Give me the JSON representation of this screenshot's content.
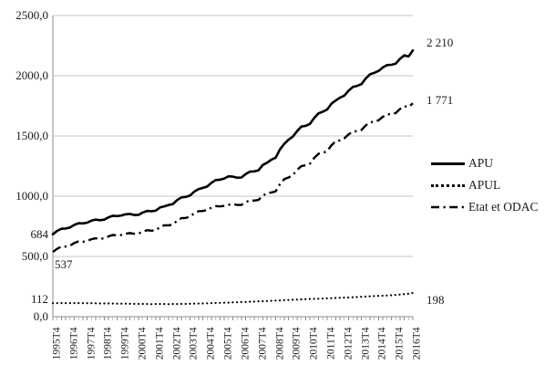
{
  "chart_data": {
    "type": "line",
    "title": "",
    "xlabel": "",
    "ylabel": "",
    "ylim": [
      0,
      2500
    ],
    "y_tick_labels": [
      "0,0",
      "500,0",
      "1000,0",
      "1500,0",
      "2000,0",
      "2500,0"
    ],
    "y_tick_values": [
      0,
      500,
      1000,
      1500,
      2000,
      2500
    ],
    "grid": "horizontal",
    "legend_position": "right",
    "x_tick_labels": [
      "1995T4",
      "1996T4",
      "1997T4",
      "1998T4",
      "1999T4",
      "2000T4",
      "2001T4",
      "2002T4",
      "2003T4",
      "2004T4",
      "2005T4",
      "2006T4",
      "2007T4",
      "2008T4",
      "2009T4",
      "2010T4",
      "2011T4",
      "2012T4",
      "2013T4",
      "2014T4",
      "2015T4",
      "2016T4"
    ],
    "x_label_every_n_points": 4,
    "series": [
      {
        "name": "APU",
        "line_style": "solid",
        "color": "#000000",
        "values": [
          684,
          712,
          730,
          732,
          740,
          762,
          776,
          774,
          780,
          797,
          806,
          801,
          805,
          825,
          838,
          835,
          840,
          850,
          853,
          844,
          845,
          865,
          878,
          875,
          880,
          907,
          916,
          927,
          935,
          968,
          990,
          995,
          1005,
          1039,
          1059,
          1069,
          1080,
          1111,
          1134,
          1137,
          1147,
          1165,
          1163,
          1154,
          1155,
          1184,
          1204,
          1206,
          1215,
          1260,
          1278,
          1304,
          1320,
          1389,
          1434,
          1469,
          1495,
          1540,
          1578,
          1584,
          1600,
          1650,
          1688,
          1702,
          1720,
          1768,
          1795,
          1818,
          1835,
          1876,
          1907,
          1916,
          1930,
          1977,
          2012,
          2024,
          2040,
          2069,
          2089,
          2091,
          2100,
          2140,
          2170,
          2160,
          2210
        ]
      },
      {
        "name": "APUL",
        "line_style": "dotted",
        "color": "#000000",
        "values": [
          112,
          112,
          113,
          112,
          113,
          113,
          113,
          112,
          112,
          112,
          111,
          110,
          110,
          110,
          109,
          108,
          108,
          108,
          107,
          106,
          106,
          106,
          105,
          104,
          105,
          105,
          105,
          104,
          105,
          105,
          106,
          106,
          107,
          108,
          109,
          110,
          111,
          112,
          114,
          115,
          116,
          117,
          119,
          120,
          121,
          122,
          124,
          125,
          127,
          128,
          130,
          132,
          134,
          135,
          137,
          139,
          141,
          142,
          144,
          145,
          147,
          148,
          149,
          150,
          152,
          153,
          155,
          156,
          158,
          159,
          161,
          163,
          165,
          167,
          169,
          171,
          173,
          174,
          176,
          178,
          180,
          183,
          187,
          191,
          198
        ]
      },
      {
        "name": "Etat et ODAC",
        "line_style": "dash-dot",
        "color": "#000000",
        "values": [
          537,
          564,
          582,
          582,
          590,
          611,
          625,
          622,
          628,
          643,
          651,
          647,
          650,
          667,
          678,
          674,
          678,
          689,
          694,
          688,
          690,
          707,
          718,
          714,
          718,
          743,
          759,
          758,
          765,
          797,
          818,
          820,
          830,
          858,
          876,
          877,
          885,
          905,
          918,
          915,
          920,
          929,
          934,
          927,
          928,
          951,
          965,
          964,
          970,
          1004,
          1027,
          1030,
          1040,
          1100,
          1142,
          1155,
          1175,
          1219,
          1250,
          1256,
          1270,
          1318,
          1352,
          1359,
          1375,
          1423,
          1457,
          1464,
          1480,
          1514,
          1537,
          1540,
          1550,
          1588,
          1614,
          1618,
          1630,
          1660,
          1680,
          1681,
          1690,
          1724,
          1747,
          1740,
          1771
        ]
      }
    ],
    "annotations": [
      {
        "text": "684",
        "value": 684,
        "placement": "left-of-axis"
      },
      {
        "text": "537",
        "value": 537,
        "placement": "inside-below-start"
      },
      {
        "text": "112",
        "value": 112,
        "placement": "left-of-axis"
      },
      {
        "text": "2 210",
        "value": 2210,
        "placement": "right-of-plot"
      },
      {
        "text": "1 771",
        "value": 1771,
        "placement": "right-of-plot"
      },
      {
        "text": "198",
        "value": 198,
        "placement": "right-of-plot"
      }
    ],
    "colors": {
      "series_stroke": "#000000",
      "gridline": "#c6c6c6",
      "axis": "#8c8c8c",
      "text": "#1a1a1a"
    }
  }
}
